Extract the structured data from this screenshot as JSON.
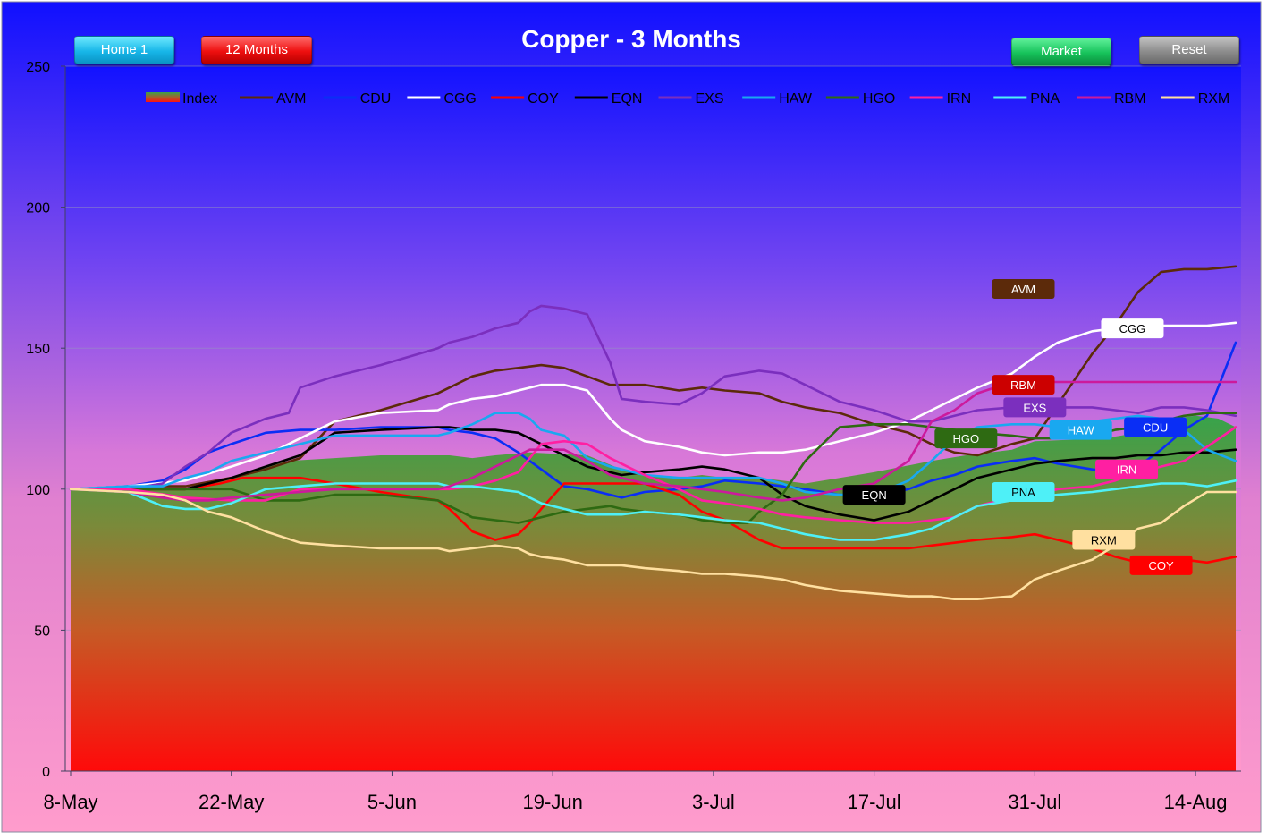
{
  "buttons": {
    "home": "Home 1",
    "months12": "12 Months",
    "market": "Market",
    "reset": "Reset"
  },
  "chart_data": {
    "type": "line",
    "title": "Copper - 3 Months",
    "ylim": [
      0,
      250
    ],
    "y_ticks": [
      0,
      50,
      100,
      150,
      200,
      250
    ],
    "x_tick_labels": [
      "8-May",
      "22-May",
      "5-Jun",
      "19-Jun",
      "3-Jul",
      "17-Jul",
      "31-Jul",
      "14-Aug"
    ],
    "x_tick_days": [
      0,
      14,
      28,
      42,
      56,
      70,
      84,
      98
    ],
    "x_range_days": [
      0,
      101.5
    ],
    "grid": "horizontal",
    "legend_position": "top",
    "index": {
      "name": "Index",
      "x": [
        0,
        5,
        10,
        13,
        15,
        17,
        19,
        23,
        27,
        32,
        33,
        35,
        37,
        40,
        45,
        48,
        50,
        53,
        55,
        57,
        60,
        62,
        64,
        67,
        70,
        75,
        78,
        82,
        84,
        90,
        93,
        96,
        98,
        100,
        101.5
      ],
      "y": [
        100,
        100,
        100,
        103,
        105,
        108,
        110,
        111,
        112,
        112,
        112,
        111,
        112,
        113,
        112,
        107,
        105,
        104,
        105,
        104,
        104,
        103,
        102,
        104,
        106,
        110,
        112,
        114,
        117,
        118,
        120,
        125,
        126,
        125,
        122
      ]
    },
    "series": [
      {
        "name": "AVM",
        "color": "#5c2a0a",
        "x": [
          0,
          5,
          10,
          14,
          17,
          20,
          23,
          27,
          32,
          33,
          35,
          37,
          39,
          41,
          43,
          45,
          47,
          48,
          50,
          53,
          55,
          57,
          60,
          62,
          64,
          67,
          70,
          73,
          75,
          77,
          79,
          82,
          84,
          86,
          89,
          91,
          93,
          95,
          97,
          99,
          101.5
        ],
        "y": [
          100,
          101,
          101,
          104,
          107,
          111,
          124,
          128,
          134,
          136,
          140,
          142,
          143,
          144,
          143,
          140,
          137,
          137,
          137,
          135,
          136,
          135,
          134,
          131,
          129,
          127,
          123,
          120,
          116,
          113,
          112,
          116,
          118,
          130,
          148,
          158,
          170,
          177,
          178,
          178,
          179
        ]
      },
      {
        "name": "CDU",
        "color": "#0a2ef5",
        "x": [
          0,
          5,
          8,
          10,
          12,
          14,
          17,
          20,
          23,
          27,
          32,
          33,
          35,
          37,
          39,
          40,
          41,
          43,
          45,
          47,
          48,
          50,
          53,
          55,
          57,
          60,
          62,
          64,
          67,
          70,
          73,
          75,
          77,
          79,
          82,
          84,
          86,
          89,
          91,
          93,
          95,
          97,
          99,
          101.5
        ],
        "y": [
          100,
          101,
          103,
          107,
          113,
          116,
          120,
          121,
          121,
          122,
          122,
          121,
          120,
          118,
          113,
          110,
          107,
          101,
          100,
          98,
          97,
          99,
          100,
          101,
          103,
          102,
          101,
          100,
          98,
          97,
          100,
          103,
          105,
          108,
          110,
          111,
          109,
          107,
          106,
          108,
          114,
          121,
          126,
          152
        ]
      },
      {
        "name": "CGG",
        "color": "#ffffff",
        "x": [
          0,
          5,
          10,
          14,
          17,
          20,
          23,
          27,
          32,
          33,
          35,
          37,
          39,
          41,
          43,
          45,
          47,
          48,
          50,
          53,
          55,
          57,
          60,
          62,
          64,
          67,
          70,
          73,
          75,
          77,
          79,
          82,
          84,
          86,
          89,
          91,
          93,
          95,
          97,
          99,
          101.5
        ],
        "y": [
          100,
          101,
          103,
          108,
          112,
          118,
          124,
          127,
          128,
          130,
          132,
          133,
          135,
          137,
          137,
          135,
          125,
          121,
          117,
          115,
          113,
          112,
          113,
          113,
          114,
          117,
          120,
          124,
          128,
          132,
          136,
          141,
          147,
          152,
          156,
          157,
          157,
          158,
          158,
          158,
          159
        ]
      },
      {
        "name": "COY",
        "color": "#ff0000",
        "x": [
          0,
          5,
          10,
          13,
          15,
          17,
          20,
          23,
          27,
          32,
          33,
          35,
          37,
          39,
          40,
          41,
          43,
          45,
          47,
          48,
          50,
          53,
          55,
          57,
          60,
          62,
          64,
          67,
          70,
          73,
          75,
          77,
          79,
          82,
          84,
          86,
          89,
          91,
          93,
          95,
          97,
          99,
          101.5
        ],
        "y": [
          100,
          100,
          100,
          102,
          104,
          104,
          104,
          102,
          99,
          96,
          93,
          85,
          82,
          84,
          88,
          93,
          102,
          102,
          102,
          102,
          102,
          98,
          92,
          89,
          82,
          79,
          79,
          79,
          79,
          79,
          80,
          81,
          82,
          83,
          84,
          82,
          79,
          76,
          74,
          74,
          75,
          74,
          76
        ]
      },
      {
        "name": "EQN",
        "color": "#000000",
        "x": [
          0,
          5,
          10,
          14,
          17,
          20,
          23,
          27,
          32,
          33,
          35,
          37,
          39,
          40,
          41,
          43,
          45,
          47,
          48,
          50,
          53,
          55,
          57,
          60,
          62,
          64,
          67,
          70,
          73,
          75,
          77,
          79,
          82,
          84,
          86,
          89,
          91,
          93,
          95,
          97,
          99,
          101.5
        ],
        "y": [
          100,
          100,
          100,
          104,
          108,
          112,
          120,
          121,
          122,
          122,
          121,
          121,
          120,
          118,
          116,
          112,
          108,
          106,
          105,
          106,
          107,
          108,
          107,
          104,
          98,
          94,
          91,
          89,
          92,
          96,
          100,
          104,
          107,
          109,
          110,
          111,
          111,
          112,
          112,
          113,
          113,
          114
        ]
      },
      {
        "name": "EXS",
        "color": "#7b2fbe",
        "x": [
          0,
          5,
          8,
          10,
          12,
          14,
          17,
          19,
          20,
          23,
          27,
          32,
          33,
          35,
          37,
          39,
          40,
          41,
          43,
          45,
          47,
          48,
          50,
          53,
          55,
          57,
          60,
          62,
          64,
          67,
          70,
          73,
          75,
          77,
          79,
          82,
          84,
          86,
          89,
          91,
          93,
          95,
          97,
          99,
          101.5
        ],
        "y": [
          100,
          100,
          102,
          108,
          113,
          120,
          125,
          127,
          136,
          140,
          144,
          150,
          152,
          154,
          157,
          159,
          163,
          165,
          164,
          162,
          145,
          132,
          131,
          130,
          134,
          140,
          142,
          141,
          137,
          131,
          128,
          124,
          124,
          126,
          128,
          129,
          129,
          129,
          129,
          128,
          127,
          129,
          129,
          128,
          126
        ]
      },
      {
        "name": "HAW",
        "color": "#19a8f0",
        "x": [
          0,
          5,
          8,
          10,
          12,
          14,
          17,
          20,
          23,
          27,
          32,
          33,
          35,
          37,
          39,
          40,
          41,
          43,
          45,
          47,
          48,
          50,
          53,
          55,
          57,
          60,
          62,
          64,
          67,
          70,
          73,
          75,
          77,
          79,
          82,
          84,
          86,
          89,
          91,
          93,
          95,
          97,
          99,
          101.5
        ],
        "y": [
          100,
          101,
          101,
          104,
          106,
          110,
          113,
          116,
          119,
          119,
          119,
          120,
          123,
          127,
          127,
          125,
          121,
          119,
          111,
          108,
          107,
          105,
          104,
          104,
          104,
          104,
          102,
          99,
          98,
          98,
          103,
          110,
          118,
          122,
          123,
          123,
          122,
          124,
          125,
          126,
          125,
          121,
          114,
          110
        ]
      },
      {
        "name": "HGO",
        "color": "#2e6a12",
        "x": [
          0,
          5,
          10,
          14,
          17,
          20,
          23,
          27,
          32,
          33,
          35,
          37,
          39,
          40,
          41,
          43,
          45,
          47,
          48,
          50,
          53,
          55,
          57,
          59,
          60,
          62,
          64,
          67,
          70,
          73,
          75,
          77,
          79,
          82,
          84,
          86,
          89,
          91,
          93,
          95,
          97,
          99,
          101.5
        ],
        "y": [
          100,
          100,
          100,
          100,
          96,
          96,
          98,
          98,
          96,
          94,
          90,
          89,
          88,
          89,
          90,
          92,
          93,
          94,
          93,
          92,
          91,
          89,
          88,
          88,
          92,
          98,
          110,
          122,
          123,
          123,
          122,
          121,
          120,
          119,
          118,
          118,
          119,
          121,
          122,
          124,
          126,
          127,
          127
        ]
      },
      {
        "name": "IRN",
        "color": "#ff1fa2",
        "x": [
          0,
          5,
          10,
          14,
          17,
          20,
          23,
          27,
          32,
          33,
          35,
          37,
          39,
          40,
          41,
          43,
          45,
          47,
          48,
          50,
          53,
          55,
          57,
          60,
          62,
          64,
          67,
          70,
          73,
          75,
          77,
          79,
          82,
          84,
          86,
          89,
          91,
          93,
          95,
          97,
          99,
          101.5
        ],
        "y": [
          100,
          100,
          97,
          96,
          96,
          100,
          100,
          100,
          100,
          100,
          101,
          103,
          106,
          111,
          116,
          117,
          116,
          111,
          109,
          105,
          100,
          96,
          95,
          93,
          91,
          90,
          89,
          88,
          88,
          89,
          90,
          94,
          97,
          98,
          100,
          101,
          103,
          106,
          108,
          110,
          115,
          122
        ]
      },
      {
        "name": "PNA",
        "color": "#4ef0f7",
        "x": [
          0,
          5,
          8,
          10,
          12,
          14,
          17,
          20,
          23,
          27,
          32,
          33,
          35,
          37,
          39,
          40,
          41,
          43,
          45,
          47,
          48,
          50,
          53,
          55,
          57,
          60,
          62,
          64,
          67,
          70,
          73,
          75,
          77,
          79,
          82,
          84,
          86,
          89,
          91,
          93,
          95,
          97,
          99,
          101.5
        ],
        "y": [
          100,
          99,
          94,
          93,
          93,
          95,
          100,
          101,
          102,
          102,
          102,
          101,
          101,
          100,
          99,
          97,
          95,
          93,
          91,
          91,
          91,
          92,
          91,
          90,
          89,
          88,
          86,
          84,
          82,
          82,
          84,
          86,
          90,
          94,
          96,
          97,
          98,
          99,
          100,
          101,
          102,
          102,
          101,
          103
        ]
      },
      {
        "name": "RBM",
        "color": "#cc1a9c",
        "x": [
          0,
          5,
          8,
          10,
          12,
          14,
          17,
          20,
          23,
          27,
          32,
          33,
          35,
          37,
          39,
          40,
          41,
          43,
          45,
          47,
          48,
          50,
          53,
          55,
          57,
          60,
          62,
          64,
          67,
          70,
          73,
          75,
          77,
          79,
          82,
          84,
          86,
          89,
          91,
          93,
          95,
          97,
          99,
          101.5
        ],
        "y": [
          100,
          99,
          97,
          96,
          96,
          97,
          98,
          99,
          100,
          100,
          100,
          101,
          104,
          108,
          112,
          114,
          114,
          114,
          110,
          105,
          104,
          102,
          101,
          100,
          99,
          97,
          96,
          97,
          100,
          102,
          110,
          124,
          128,
          134,
          138,
          138,
          138,
          138,
          138,
          138,
          138,
          138,
          138,
          138
        ]
      },
      {
        "name": "RXM",
        "color": "#ffe0a0",
        "x": [
          0,
          5,
          8,
          10,
          12,
          14,
          17,
          20,
          23,
          27,
          32,
          33,
          35,
          37,
          39,
          40,
          41,
          43,
          45,
          47,
          48,
          50,
          53,
          55,
          57,
          60,
          62,
          64,
          67,
          70,
          73,
          75,
          77,
          79,
          82,
          84,
          86,
          89,
          91,
          93,
          95,
          97,
          99,
          101.5
        ],
        "y": [
          100,
          99,
          98,
          96,
          92,
          90,
          85,
          81,
          80,
          79,
          79,
          78,
          79,
          80,
          79,
          77,
          76,
          75,
          73,
          73,
          73,
          72,
          71,
          70,
          70,
          69,
          68,
          66,
          64,
          63,
          62,
          62,
          61,
          61,
          62,
          68,
          71,
          75,
          80,
          86,
          88,
          94,
          99,
          99
        ]
      }
    ],
    "end_labels": [
      {
        "name": "AVM",
        "value": 171,
        "day": 83,
        "bg": "#5c2a0a",
        "fg": "#ffffff"
      },
      {
        "name": "CGG",
        "value": 157,
        "day": 92.5,
        "bg": "#ffffff",
        "fg": "#000000"
      },
      {
        "name": "RBM",
        "value": 137,
        "day": 83,
        "bg": "#cc0000",
        "fg": "#ffffff"
      },
      {
        "name": "EXS",
        "value": 129,
        "day": 84,
        "bg": "#7b2fbe",
        "fg": "#ffffff"
      },
      {
        "name": "HAW",
        "value": 121,
        "day": 88,
        "bg": "#19a8f0",
        "fg": "#ffffff"
      },
      {
        "name": "CDU",
        "value": 122,
        "day": 94.5,
        "bg": "#0a2ef5",
        "fg": "#ffffff"
      },
      {
        "name": "HGO",
        "value": 118,
        "day": 78,
        "bg": "#2e6a12",
        "fg": "#ffffff"
      },
      {
        "name": "IRN",
        "value": 107,
        "day": 92,
        "bg": "#ff1fa2",
        "fg": "#ffffff"
      },
      {
        "name": "EQN",
        "value": 98,
        "day": 70,
        "bg": "#000000",
        "fg": "#ffffff",
        "display": "EQN"
      },
      {
        "name": "PNA",
        "value": 99,
        "day": 83,
        "bg": "#4ef0f7",
        "fg": "#000000"
      },
      {
        "name": "RXM",
        "value": 82,
        "day": 90,
        "bg": "#ffe0a0",
        "fg": "#000000"
      },
      {
        "name": "COY",
        "value": 73,
        "day": 95,
        "bg": "#ff0000",
        "fg": "#ffffff"
      }
    ]
  }
}
